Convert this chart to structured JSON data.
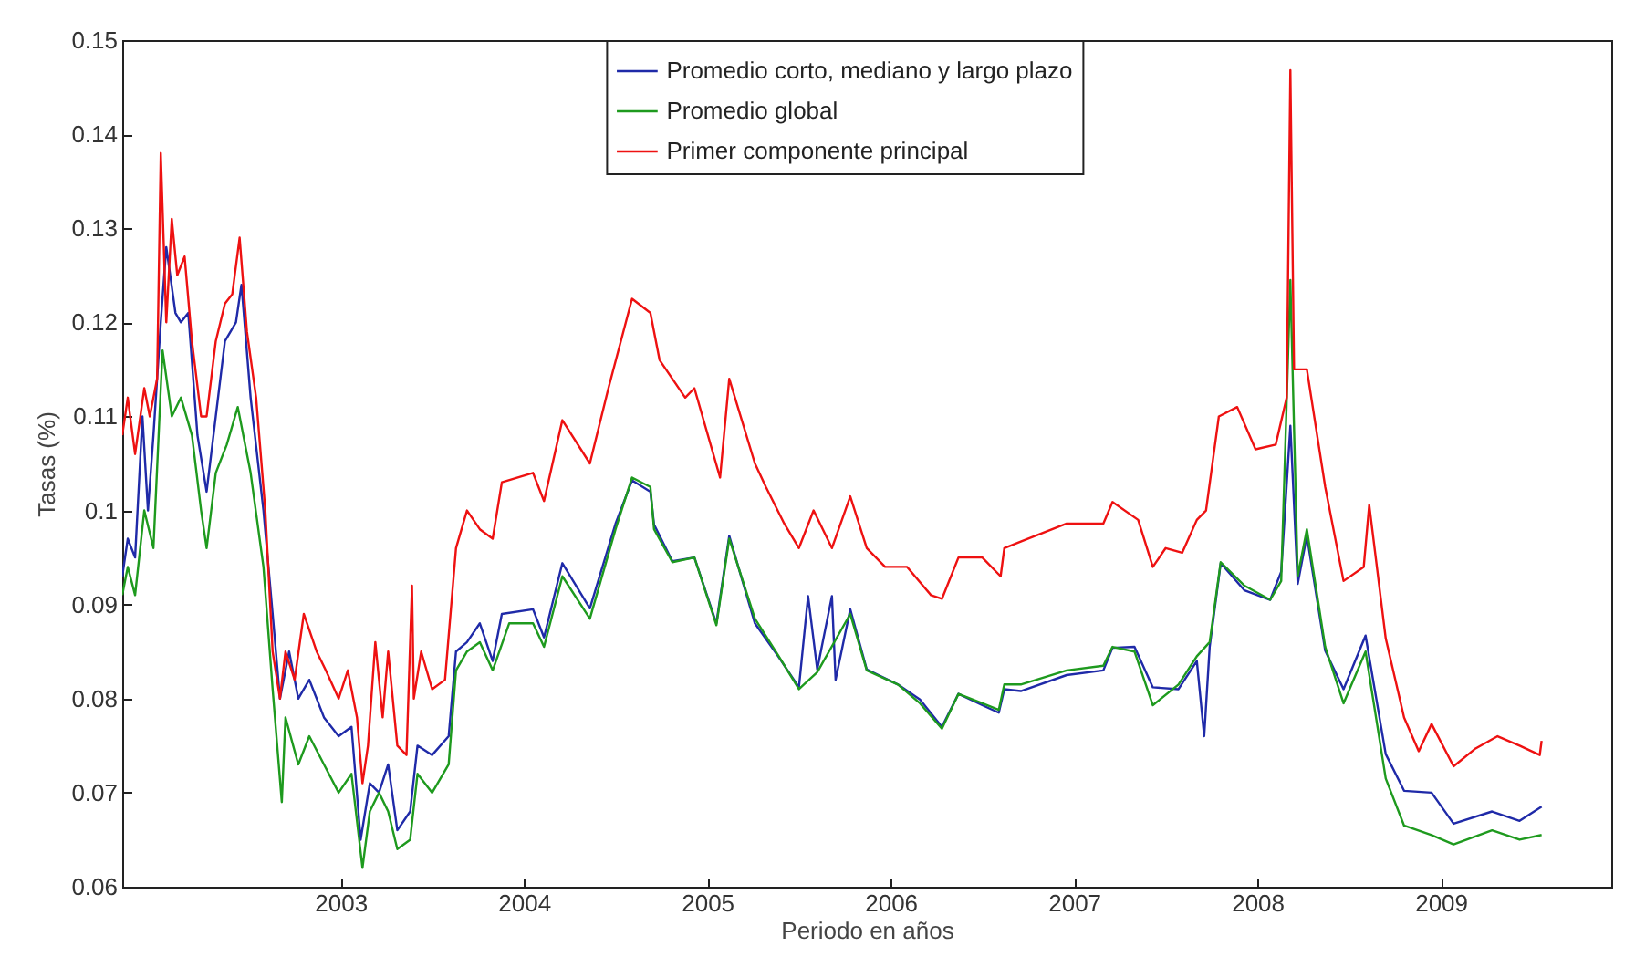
{
  "chart_data": {
    "type": "line",
    "xlabel": "Periodo en años",
    "ylabel": "Tasas (%)",
    "xlim": [
      2001.81,
      2009.93
    ],
    "ylim": [
      0.06,
      0.15
    ],
    "xticks": [
      2003,
      2004,
      2005,
      2006,
      2007,
      2008,
      2009
    ],
    "yticks": [
      0.06,
      0.07,
      0.08,
      0.09,
      0.1,
      0.11,
      0.12,
      0.13,
      0.14,
      0.15
    ],
    "grid": false,
    "legend": "top",
    "marker": "none",
    "line_style": "solid",
    "series": [
      {
        "name": "Promedio corto, mediano y largo plazo",
        "color": "#1f2aa8",
        "x": [
          2001.81,
          2001.84,
          2001.88,
          2001.92,
          2001.95,
          2001.98,
          2002.02,
          2002.05,
          2002.1,
          2002.13,
          2002.17,
          2002.22,
          2002.27,
          2002.32,
          2002.37,
          2002.43,
          2002.46,
          2002.51,
          2002.58,
          2002.63,
          2002.67,
          2002.72,
          2002.77,
          2002.83,
          2002.91,
          2002.99,
          2003.06,
          2003.11,
          2003.16,
          2003.21,
          2003.26,
          2003.31,
          2003.38,
          2003.42,
          2003.5,
          2003.59,
          2003.63,
          2003.69,
          2003.76,
          2003.83,
          2003.88,
          2004.05,
          2004.11,
          2004.21,
          2004.36,
          2004.5,
          2004.59,
          2004.69,
          2004.71,
          2004.81,
          2004.93,
          2005.05,
          2005.12,
          2005.26,
          2005.39,
          2005.5,
          2005.55,
          2005.6,
          2005.68,
          2005.7,
          2005.78,
          2005.87,
          2006.04,
          2006.16,
          2006.28,
          2006.37,
          2006.5,
          2006.59,
          2006.62,
          2006.71,
          2006.96,
          2007.16,
          2007.21,
          2007.33,
          2007.43,
          2007.57,
          2007.67,
          2007.71,
          2007.74,
          2007.8,
          2007.93,
          2008.07,
          2008.13,
          2008.18,
          2008.22,
          2008.27,
          2008.37,
          2008.47,
          2008.59,
          2008.7,
          2008.8,
          2008.95,
          2009.07,
          2009.28,
          2009.43,
          2009.55
        ],
        "values": [
          0.093,
          0.097,
          0.095,
          0.11,
          0.1,
          0.108,
          0.12,
          0.128,
          0.121,
          0.12,
          0.121,
          0.108,
          0.102,
          0.11,
          0.118,
          0.12,
          0.124,
          0.112,
          0.1,
          0.089,
          0.08,
          0.085,
          0.08,
          0.082,
          0.078,
          0.076,
          0.077,
          0.065,
          0.071,
          0.07,
          0.073,
          0.066,
          0.068,
          0.075,
          0.074,
          0.076,
          0.085,
          0.086,
          0.088,
          0.084,
          0.089,
          0.0895,
          0.0865,
          0.0944,
          0.0896,
          0.0986,
          0.1032,
          0.102,
          0.0985,
          0.0946,
          0.095,
          0.088,
          0.0973,
          0.088,
          0.0844,
          0.0812,
          0.0909,
          0.0831,
          0.0909,
          0.082,
          0.0895,
          0.0831,
          0.0815,
          0.0799,
          0.077,
          0.0805,
          0.0793,
          0.0785,
          0.081,
          0.0808,
          0.0825,
          0.083,
          0.0854,
          0.0855,
          0.0812,
          0.081,
          0.084,
          0.076,
          0.0855,
          0.0944,
          0.0915,
          0.0905,
          0.0935,
          0.109,
          0.0922,
          0.0973,
          0.0851,
          0.081,
          0.0867,
          0.0741,
          0.0702,
          0.07,
          0.0667,
          0.068,
          0.067,
          0.0685
        ]
      },
      {
        "name": "Promedio global",
        "color": "#1e9a1e",
        "x": [
          2001.81,
          2001.84,
          2001.88,
          2001.93,
          2001.98,
          2002.02,
          2002.03,
          2002.08,
          2002.13,
          2002.19,
          2002.24,
          2002.27,
          2002.32,
          2002.38,
          2002.44,
          2002.51,
          2002.58,
          2002.63,
          2002.68,
          2002.7,
          2002.77,
          2002.83,
          2002.91,
          2002.99,
          2003.06,
          2003.12,
          2003.16,
          2003.21,
          2003.26,
          2003.31,
          2003.38,
          2003.42,
          2003.5,
          2003.59,
          2003.63,
          2003.69,
          2003.76,
          2003.83,
          2003.92,
          2004.05,
          2004.11,
          2004.21,
          2004.36,
          2004.5,
          2004.59,
          2004.69,
          2004.71,
          2004.81,
          2004.93,
          2005.05,
          2005.12,
          2005.26,
          2005.39,
          2005.5,
          2005.6,
          2005.78,
          2005.87,
          2006.04,
          2006.16,
          2006.28,
          2006.37,
          2006.5,
          2006.59,
          2006.62,
          2006.71,
          2006.96,
          2007.16,
          2007.21,
          2007.33,
          2007.43,
          2007.57,
          2007.67,
          2007.74,
          2007.8,
          2007.93,
          2008.07,
          2008.13,
          2008.18,
          2008.22,
          2008.27,
          2008.37,
          2008.47,
          2008.59,
          2008.7,
          2008.8,
          2008.95,
          2009.07,
          2009.28,
          2009.43,
          2009.55
        ],
        "values": [
          0.091,
          0.094,
          0.091,
          0.1,
          0.096,
          0.113,
          0.117,
          0.11,
          0.112,
          0.108,
          0.1,
          0.096,
          0.104,
          0.107,
          0.111,
          0.104,
          0.094,
          0.081,
          0.069,
          0.078,
          0.073,
          0.076,
          0.073,
          0.07,
          0.072,
          0.062,
          0.068,
          0.07,
          0.068,
          0.064,
          0.065,
          0.072,
          0.07,
          0.073,
          0.083,
          0.085,
          0.086,
          0.083,
          0.088,
          0.088,
          0.0855,
          0.093,
          0.0885,
          0.098,
          0.1035,
          0.1025,
          0.098,
          0.0945,
          0.095,
          0.0878,
          0.097,
          0.0885,
          0.0845,
          0.081,
          0.0828,
          0.089,
          0.083,
          0.0815,
          0.0795,
          0.0768,
          0.0805,
          0.0795,
          0.0788,
          0.0815,
          0.0815,
          0.083,
          0.0835,
          0.0855,
          0.085,
          0.0793,
          0.0815,
          0.0845,
          0.086,
          0.0945,
          0.092,
          0.0905,
          0.0925,
          0.1245,
          0.093,
          0.098,
          0.0855,
          0.0795,
          0.085,
          0.0715,
          0.0665,
          0.0655,
          0.0645,
          0.066,
          0.065,
          0.0655
        ]
      },
      {
        "name": "Primer componente principal",
        "color": "#ee1111",
        "x": [
          2001.81,
          2001.84,
          2001.88,
          2001.93,
          2001.96,
          2002.0,
          2002.02,
          2002.05,
          2002.08,
          2002.11,
          2002.15,
          2002.19,
          2002.24,
          2002.27,
          2002.32,
          2002.37,
          2002.41,
          2002.45,
          2002.49,
          2002.54,
          2002.59,
          2002.63,
          2002.67,
          2002.7,
          2002.75,
          2002.8,
          2002.87,
          2002.92,
          2002.99,
          2003.04,
          2003.09,
          2003.12,
          2003.15,
          2003.19,
          2003.23,
          2003.26,
          2003.31,
          2003.36,
          2003.39,
          2003.4,
          2003.44,
          2003.5,
          2003.57,
          2003.63,
          2003.69,
          2003.76,
          2003.83,
          2003.88,
          2004.05,
          2004.11,
          2004.21,
          2004.36,
          2004.46,
          2004.59,
          2004.69,
          2004.74,
          2004.88,
          2004.93,
          2005.07,
          2005.12,
          2005.26,
          2005.32,
          2005.42,
          2005.5,
          2005.58,
          2005.68,
          2005.78,
          2005.87,
          2005.97,
          2006.09,
          2006.22,
          2006.28,
          2006.37,
          2006.5,
          2006.6,
          2006.62,
          2006.71,
          2006.96,
          2007.16,
          2007.21,
          2007.35,
          2007.43,
          2007.5,
          2007.59,
          2007.67,
          2007.72,
          2007.79,
          2007.89,
          2007.99,
          2008.1,
          2008.16,
          2008.18,
          2008.2,
          2008.27,
          2008.37,
          2008.47,
          2008.58,
          2008.61,
          2008.7,
          2008.8,
          2008.88,
          2008.95,
          2009.07,
          2009.19,
          2009.31,
          2009.43,
          2009.54,
          2009.55
        ],
        "values": [
          0.108,
          0.112,
          0.106,
          0.113,
          0.11,
          0.114,
          0.138,
          0.12,
          0.131,
          0.125,
          0.127,
          0.118,
          0.11,
          0.11,
          0.118,
          0.122,
          0.123,
          0.129,
          0.119,
          0.112,
          0.1,
          0.085,
          0.08,
          0.085,
          0.082,
          0.089,
          0.085,
          0.083,
          0.08,
          0.083,
          0.078,
          0.071,
          0.075,
          0.086,
          0.078,
          0.085,
          0.075,
          0.074,
          0.092,
          0.08,
          0.085,
          0.081,
          0.082,
          0.096,
          0.1,
          0.098,
          0.097,
          0.103,
          0.104,
          0.101,
          0.1096,
          0.105,
          0.1129,
          0.1225,
          0.121,
          0.116,
          0.112,
          0.113,
          0.1035,
          0.114,
          0.105,
          0.1025,
          0.0986,
          0.096,
          0.1,
          0.096,
          0.1015,
          0.096,
          0.094,
          0.094,
          0.091,
          0.0906,
          0.095,
          0.095,
          0.093,
          0.096,
          0.0967,
          0.0986,
          0.0986,
          0.1009,
          0.099,
          0.094,
          0.096,
          0.0955,
          0.099,
          0.1,
          0.11,
          0.111,
          0.1065,
          0.107,
          0.112,
          0.1468,
          0.115,
          0.115,
          0.1025,
          0.0925,
          0.094,
          0.1006,
          0.0864,
          0.078,
          0.0744,
          0.0773,
          0.0728,
          0.0747,
          0.076,
          0.075,
          0.074,
          0.0755
        ]
      }
    ]
  }
}
